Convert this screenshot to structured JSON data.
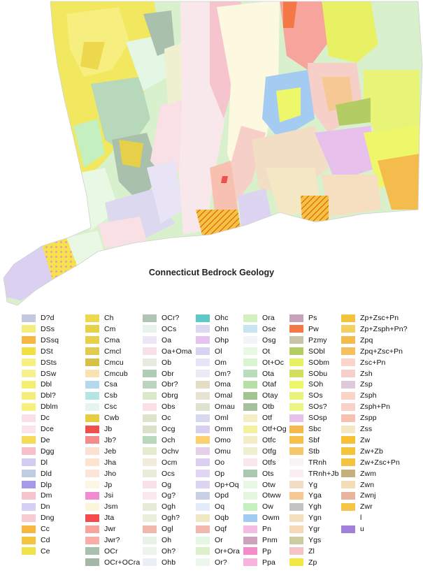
{
  "map": {
    "title": "Connecticut Bedrock Geology"
  },
  "legend": [
    [
      {
        "code": "D?d",
        "color": "#c2c8e0"
      },
      {
        "code": "DSs",
        "color": "#f3ee7e"
      },
      {
        "code": "DSsq",
        "color": "#f6b842"
      },
      {
        "code": "DSt",
        "color": "#f2e040"
      },
      {
        "code": "DSts",
        "color": "#f7ef82"
      },
      {
        "code": "DSw",
        "color": "#f6f18c"
      },
      {
        "code": "Dbl",
        "color": "#f6ee6e"
      },
      {
        "code": "Dbl?",
        "color": "#f6ee78"
      },
      {
        "code": "Dblm",
        "color": "#f6f07e"
      },
      {
        "code": "Dc",
        "color": "#f8e0e6"
      },
      {
        "code": "Dce",
        "color": "#fae4ea"
      },
      {
        "code": "De",
        "color": "#f4dc58"
      },
      {
        "code": "Dgg",
        "color": "#f7c0c8"
      },
      {
        "code": "Dl",
        "color": "#d4ccf0"
      },
      {
        "code": "Dld",
        "color": "#c0cce4"
      },
      {
        "code": "Dlp",
        "color": "#a69ae8"
      },
      {
        "code": "Dm",
        "color": "#f6c4cc"
      },
      {
        "code": "Dn",
        "color": "#d6d0f4"
      },
      {
        "code": "Dng",
        "color": "#f8cad2"
      },
      {
        "code": "Cc",
        "color": "#f6b840"
      },
      {
        "code": "Cd",
        "color": "#f4c43c"
      },
      {
        "code": "Ce",
        "color": "#f2e24a"
      }
    ],
    [
      {
        "code": "Ch",
        "color": "#eed84e"
      },
      {
        "code": "Cm",
        "color": "#e6d246"
      },
      {
        "code": "Cma",
        "color": "#e6d04a"
      },
      {
        "code": "Cmcl",
        "color": "#e2cc50"
      },
      {
        "code": "Cmcu",
        "color": "#d6c048"
      },
      {
        "code": "Cmcub",
        "color": "#fbe2b4"
      },
      {
        "code": "Csa",
        "color": "#b4d8ee"
      },
      {
        "code": "Csb",
        "color": "#b4e4e4"
      },
      {
        "code": "Csc",
        "color": "#e6f4f0"
      },
      {
        "code": "Cwb",
        "color": "#e6ce3e"
      },
      {
        "code": "Jb",
        "color": "#ee5050"
      },
      {
        "code": "Jb?",
        "color": "#f48a8a"
      },
      {
        "code": "Jeb",
        "color": "#fbe2d0"
      },
      {
        "code": "Jha",
        "color": "#fce4d0"
      },
      {
        "code": "Jho",
        "color": "#fce4d6"
      },
      {
        "code": "Jp",
        "color": "#fdf6e6"
      },
      {
        "code": "Jsi",
        "color": "#f08cd0"
      },
      {
        "code": "Jsm",
        "color": "#fdf4dc"
      },
      {
        "code": "Jta",
        "color": "#f44c4c"
      },
      {
        "code": "Jwr",
        "color": "#f6a49c"
      },
      {
        "code": "Jwr?",
        "color": "#f8aea6"
      },
      {
        "code": "OCr",
        "color": "#a8c0ac"
      },
      {
        "code": "OCr+OCra",
        "color": "#a6b6a4"
      }
    ],
    [
      {
        "code": "OCr?",
        "color": "#b0c4b4"
      },
      {
        "code": "OCs",
        "color": "#e8f4ea"
      },
      {
        "code": "Oa",
        "color": "#ece6f6"
      },
      {
        "code": "Oa+Oma",
        "color": "#f6e0ea"
      },
      {
        "code": "Ob",
        "color": "#e4ece0"
      },
      {
        "code": "Obr",
        "color": "#b0ccb4"
      },
      {
        "code": "Obr?",
        "color": "#bcd4be"
      },
      {
        "code": "Obrg",
        "color": "#dce8cc"
      },
      {
        "code": "Obs",
        "color": "#f8e0e4"
      },
      {
        "code": "Oc",
        "color": "#dce4cc"
      },
      {
        "code": "Ocg",
        "color": "#d8e2c8"
      },
      {
        "code": "Och",
        "color": "#b8d8bc"
      },
      {
        "code": "Ochv",
        "color": "#e4ecd0"
      },
      {
        "code": "Ocm",
        "color": "#f2ecdc"
      },
      {
        "code": "Ocs",
        "color": "#e8ecd8"
      },
      {
        "code": "Og",
        "color": "#f8e2e8"
      },
      {
        "code": "Og?",
        "color": "#fae8ec"
      },
      {
        "code": "Ogh",
        "color": "#e4ecd8"
      },
      {
        "code": "Ogh?",
        "color": "#e8f0dc"
      },
      {
        "code": "Ogl",
        "color": "#f0b8aa"
      },
      {
        "code": "Oh",
        "color": "#e8f2e8"
      },
      {
        "code": "Oh?",
        "color": "#ecf4ec"
      },
      {
        "code": "Ohb",
        "color": "#eaeef6"
      }
    ],
    [
      {
        "code": "Ohc",
        "color": "#5ec8c8"
      },
      {
        "code": "Ohn",
        "color": "#dcd8f0"
      },
      {
        "code": "Ohp",
        "color": "#e6c4f0"
      },
      {
        "code": "Ol",
        "color": "#d8d2f2"
      },
      {
        "code": "Om",
        "color": "#e8e4f6"
      },
      {
        "code": "Om?",
        "color": "#eceaf6"
      },
      {
        "code": "Oma",
        "color": "#e4dcc4"
      },
      {
        "code": "Omal",
        "color": "#e6e4d0"
      },
      {
        "code": "Omau",
        "color": "#dce4d0"
      },
      {
        "code": "Oml",
        "color": "#d6d8ee"
      },
      {
        "code": "Omm",
        "color": "#d8d0ee"
      },
      {
        "code": "Omo",
        "color": "#fcd070"
      },
      {
        "code": "Omu",
        "color": "#e4d0e8"
      },
      {
        "code": "Oo",
        "color": "#dcd0f2"
      },
      {
        "code": "Op",
        "color": "#e0d6f4"
      },
      {
        "code": "Op+Oq",
        "color": "#dcd4f0"
      },
      {
        "code": "Opd",
        "color": "#c8d0e6"
      },
      {
        "code": "Oq",
        "color": "#e2ecf8"
      },
      {
        "code": "Oqb",
        "color": "#f0e8c4"
      },
      {
        "code": "Oqf",
        "color": "#f2b8ae"
      },
      {
        "code": "Or",
        "color": "#e4f6e4"
      },
      {
        "code": "Or+Ora",
        "color": "#dcf0cc"
      },
      {
        "code": "Or?",
        "color": "#ecf6ec"
      }
    ],
    [
      {
        "code": "Ora",
        "color": "#d4f0c0"
      },
      {
        "code": "Ose",
        "color": "#c8e4f0"
      },
      {
        "code": "Osg",
        "color": "#f0f6f8"
      },
      {
        "code": "Ot",
        "color": "#e8f8e2"
      },
      {
        "code": "Ot+Oc",
        "color": "#d8f4d0"
      },
      {
        "code": "Ota",
        "color": "#b8dcbc"
      },
      {
        "code": "Otaf",
        "color": "#b6e0a6"
      },
      {
        "code": "Otay",
        "color": "#a2c490"
      },
      {
        "code": "Otb",
        "color": "#a6c0a0"
      },
      {
        "code": "Otf",
        "color": "#f4eec6"
      },
      {
        "code": "Otf+Og",
        "color": "#f4f0a0"
      },
      {
        "code": "Otfc",
        "color": "#f2ecc8"
      },
      {
        "code": "Otfg",
        "color": "#eef0d0"
      },
      {
        "code": "Otfs",
        "color": "#f8e8ec"
      },
      {
        "code": "Ots",
        "color": "#a8c8b0"
      },
      {
        "code": "Otw",
        "color": "#e8f8e4"
      },
      {
        "code": "Otww",
        "color": "#e4f6e0"
      },
      {
        "code": "Ow",
        "color": "#c4f0c0"
      },
      {
        "code": "Owm",
        "color": "#a4ccf2"
      },
      {
        "code": "Pn",
        "color": "#f4bce2"
      },
      {
        "code": "Pnm",
        "color": "#cca2bc"
      },
      {
        "code": "Pp",
        "color": "#f48ccc"
      },
      {
        "code": "Ppa",
        "color": "#f8b2dc"
      }
    ],
    [
      {
        "code": "Ps",
        "color": "#c8a2bc"
      },
      {
        "code": "Pw",
        "color": "#f47846"
      },
      {
        "code": "Pzmy",
        "color": "#c8c4a8"
      },
      {
        "code": "SObl",
        "color": "#b4cc64"
      },
      {
        "code": "SObm",
        "color": "#e8f064"
      },
      {
        "code": "SObu",
        "color": "#d2e05c"
      },
      {
        "code": "SOh",
        "color": "#eef66a"
      },
      {
        "code": "SOs",
        "color": "#e8f478"
      },
      {
        "code": "SOs?",
        "color": "#ecf684"
      },
      {
        "code": "SOsp",
        "color": "#e8c0ec"
      },
      {
        "code": "Sbc",
        "color": "#f6b84c"
      },
      {
        "code": "Sbf",
        "color": "#f6c04a"
      },
      {
        "code": "Stb",
        "color": "#f4c86a"
      },
      {
        "code": "TRnh",
        "color": "#f8f4f6"
      },
      {
        "code": "TRnh+Jb",
        "color": "#fbeef0"
      },
      {
        "code": "Yg",
        "color": "#f2dec4"
      },
      {
        "code": "Yga",
        "color": "#f6c894"
      },
      {
        "code": "Ygh",
        "color": "#c4c4c4"
      },
      {
        "code": "Ygn",
        "color": "#f6dec0"
      },
      {
        "code": "Ygr",
        "color": "#f4d8b8"
      },
      {
        "code": "Ygs",
        "color": "#cccca0"
      },
      {
        "code": "Zl",
        "color": "#f4c4c8"
      },
      {
        "code": "Zp",
        "color": "#f2e844"
      }
    ],
    [
      {
        "code": "Zp+Zsc+Pn",
        "color": "#f2c43c"
      },
      {
        "code": "Zp+Zsph+Pn?",
        "color": "#f4d064"
      },
      {
        "code": "Zpq",
        "color": "#f4bc4c"
      },
      {
        "code": "Zpq+Zsc+Pn",
        "color": "#f6c060"
      },
      {
        "code": "Zsc+Pn",
        "color": "#fbd4cc"
      },
      {
        "code": "Zsh",
        "color": "#f6d0c8"
      },
      {
        "code": "Zsp",
        "color": "#e0c8dc"
      },
      {
        "code": "Zsph",
        "color": "#fbd4c8"
      },
      {
        "code": "Zsph+Pn",
        "color": "#f8d2c8"
      },
      {
        "code": "Zspp",
        "color": "#f8c0b0"
      },
      {
        "code": "Zss",
        "color": "#f4e8c4"
      },
      {
        "code": "Zw",
        "color": "#f6c034"
      },
      {
        "code": "Zw+Zb",
        "color": "#f4c43a"
      },
      {
        "code": "Zw+Zsc+Pn",
        "color": "#f2c440"
      },
      {
        "code": "Zwm",
        "color": "#c4b07c"
      },
      {
        "code": "Zwn",
        "color": "#f4dcb8"
      },
      {
        "code": "Zwnj",
        "color": "#e8b4a0"
      },
      {
        "code": "Zwr",
        "color": "#f6c448"
      },
      {
        "code": "l",
        "color": "#ffffff"
      },
      {
        "code": "u",
        "color": "#a080d8"
      }
    ]
  ]
}
